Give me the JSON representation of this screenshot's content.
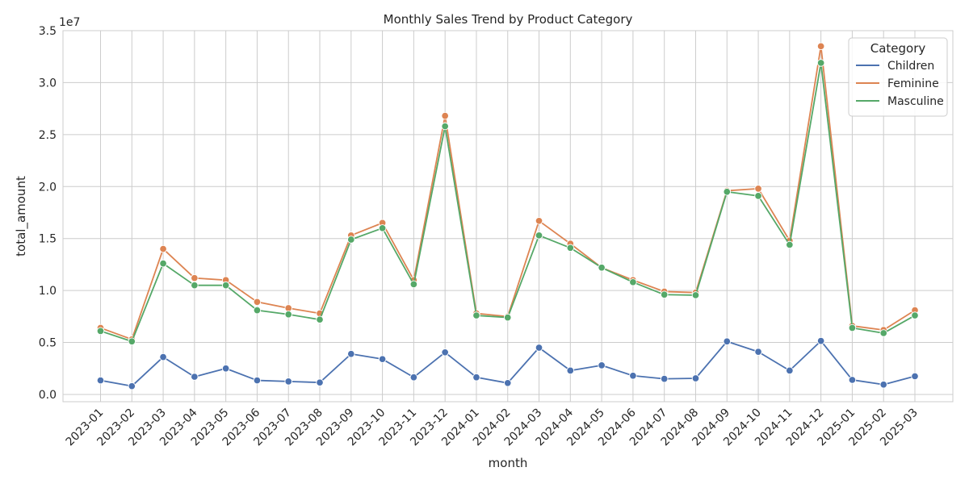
{
  "chart_data": {
    "type": "line",
    "title": "Monthly Sales Trend by Product Category",
    "xlabel": "month",
    "ylabel": "total_amount",
    "y_offset_label": "1e7",
    "ylim": [
      -0.07,
      3.5
    ],
    "yticks": [
      "0.0",
      "0.5",
      "1.0",
      "1.5",
      "2.0",
      "2.5",
      "3.0",
      "3.5"
    ],
    "grid": true,
    "legend_title": "Category",
    "legend_position": "top-right",
    "categories": [
      "2023-01",
      "2023-02",
      "2023-03",
      "2023-04",
      "2023-05",
      "2023-06",
      "2023-07",
      "2023-08",
      "2023-09",
      "2023-10",
      "2023-11",
      "2023-12",
      "2024-01",
      "2024-02",
      "2024-03",
      "2024-04",
      "2024-05",
      "2024-06",
      "2024-07",
      "2024-08",
      "2024-09",
      "2024-10",
      "2024-11",
      "2024-12",
      "2025-01",
      "2025-02",
      "2025-03"
    ],
    "series": [
      {
        "name": "Children",
        "color": "#4c72b0",
        "values": [
          0.135,
          0.08,
          0.36,
          0.17,
          0.25,
          0.135,
          0.125,
          0.115,
          0.39,
          0.34,
          0.165,
          0.405,
          0.165,
          0.11,
          0.45,
          0.23,
          0.28,
          0.18,
          0.15,
          0.155,
          0.51,
          0.41,
          0.23,
          0.515,
          0.14,
          0.095,
          0.175
        ]
      },
      {
        "name": "Feminine",
        "color": "#dd8452",
        "values": [
          0.64,
          0.53,
          1.4,
          1.12,
          1.1,
          0.89,
          0.83,
          0.78,
          1.53,
          1.65,
          1.1,
          2.68,
          0.78,
          0.75,
          1.67,
          1.45,
          1.22,
          1.1,
          0.99,
          0.98,
          1.96,
          1.98,
          1.48,
          3.35,
          0.66,
          0.62,
          0.81
        ]
      },
      {
        "name": "Masculine",
        "color": "#55a868",
        "values": [
          0.61,
          0.51,
          1.26,
          1.05,
          1.05,
          0.81,
          0.77,
          0.72,
          1.49,
          1.6,
          1.06,
          2.58,
          0.76,
          0.74,
          1.53,
          1.41,
          1.22,
          1.08,
          0.96,
          0.955,
          1.95,
          1.91,
          1.44,
          3.19,
          0.64,
          0.59,
          0.76
        ]
      }
    ]
  }
}
